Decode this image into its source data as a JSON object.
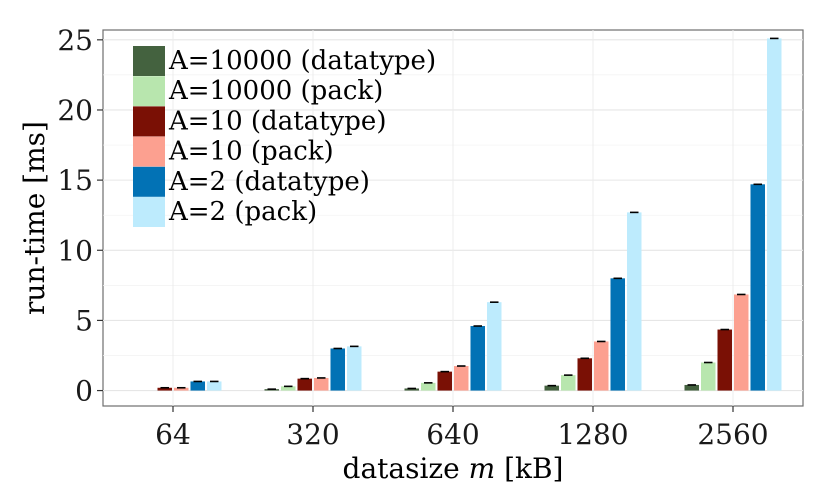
{
  "chart_data": {
    "type": "bar",
    "xlabel_prefix": "datasize ",
    "xlabel_var": "m",
    "xlabel_suffix": " [kB]",
    "ylabel": "run-time [ms]",
    "categories": [
      "64",
      "320",
      "640",
      "1280",
      "2560"
    ],
    "ylim": [
      -1.1,
      25.7
    ],
    "yticks": [
      0,
      5,
      10,
      15,
      20,
      25
    ],
    "grid": true,
    "legend_position": "top-left",
    "series": [
      {
        "name": "A=10000 (datatype)",
        "color": "#44623f",
        "values": [
          0.0,
          0.1,
          0.15,
          0.35,
          0.4
        ]
      },
      {
        "name": "A=10000 (pack)",
        "color": "#b8e6ae",
        "values": [
          0.0,
          0.3,
          0.55,
          1.1,
          2.0
        ]
      },
      {
        "name": "A=10 (datatype)",
        "color": "#7a1005",
        "values": [
          0.2,
          0.85,
          1.35,
          2.3,
          4.35
        ]
      },
      {
        "name": "A=10 (pack)",
        "color": "#fca090",
        "values": [
          0.2,
          0.9,
          1.75,
          3.5,
          6.85
        ]
      },
      {
        "name": "A=2 (datatype)",
        "color": "#0272b5",
        "values": [
          0.65,
          3.0,
          4.6,
          8.0,
          14.7
        ]
      },
      {
        "name": "A=2 (pack)",
        "color": "#bdebfd",
        "values": [
          0.65,
          3.15,
          6.3,
          12.7,
          25.1
        ]
      }
    ]
  }
}
